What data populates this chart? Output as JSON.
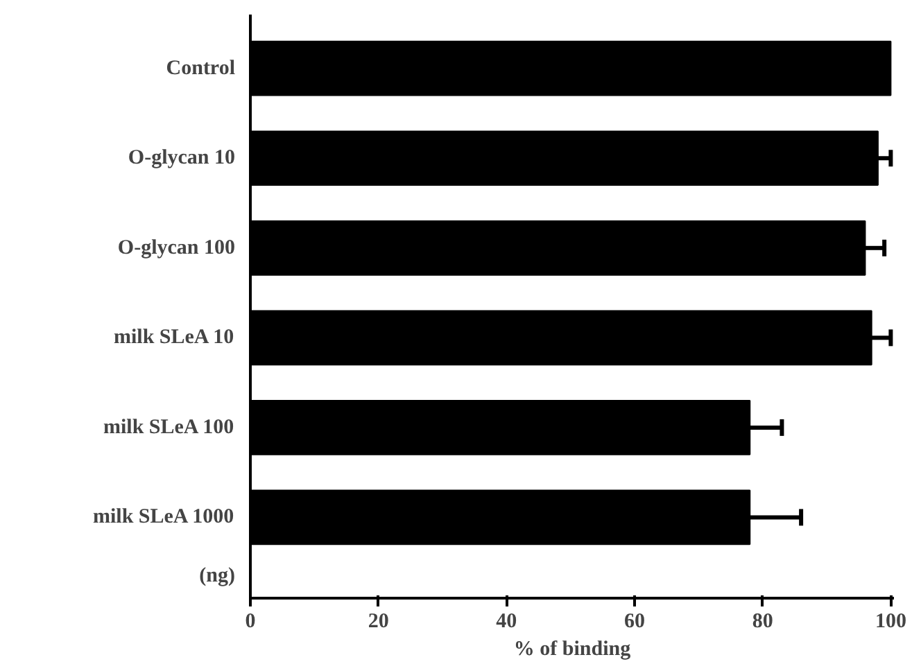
{
  "chart_data": {
    "type": "bar",
    "orientation": "horizontal",
    "categories": [
      "Control",
      "O-glycan 10",
      "O-glycan 100",
      "milk SLeA 10",
      "milk SLeA 100",
      "milk SLeA 1000"
    ],
    "values": [
      100,
      98,
      96,
      97,
      78,
      78
    ],
    "errors": [
      null,
      [
        98,
        100
      ],
      [
        96,
        99
      ],
      [
        97,
        100
      ],
      [
        78,
        83
      ],
      [
        78,
        86
      ]
    ],
    "color": "#000000",
    "xlim": [
      0,
      100
    ],
    "xticks": [
      0,
      20,
      40,
      60,
      80,
      100
    ],
    "xlabel": "% of binding",
    "annotations": [
      "(ng)"
    ],
    "grid": false
  }
}
